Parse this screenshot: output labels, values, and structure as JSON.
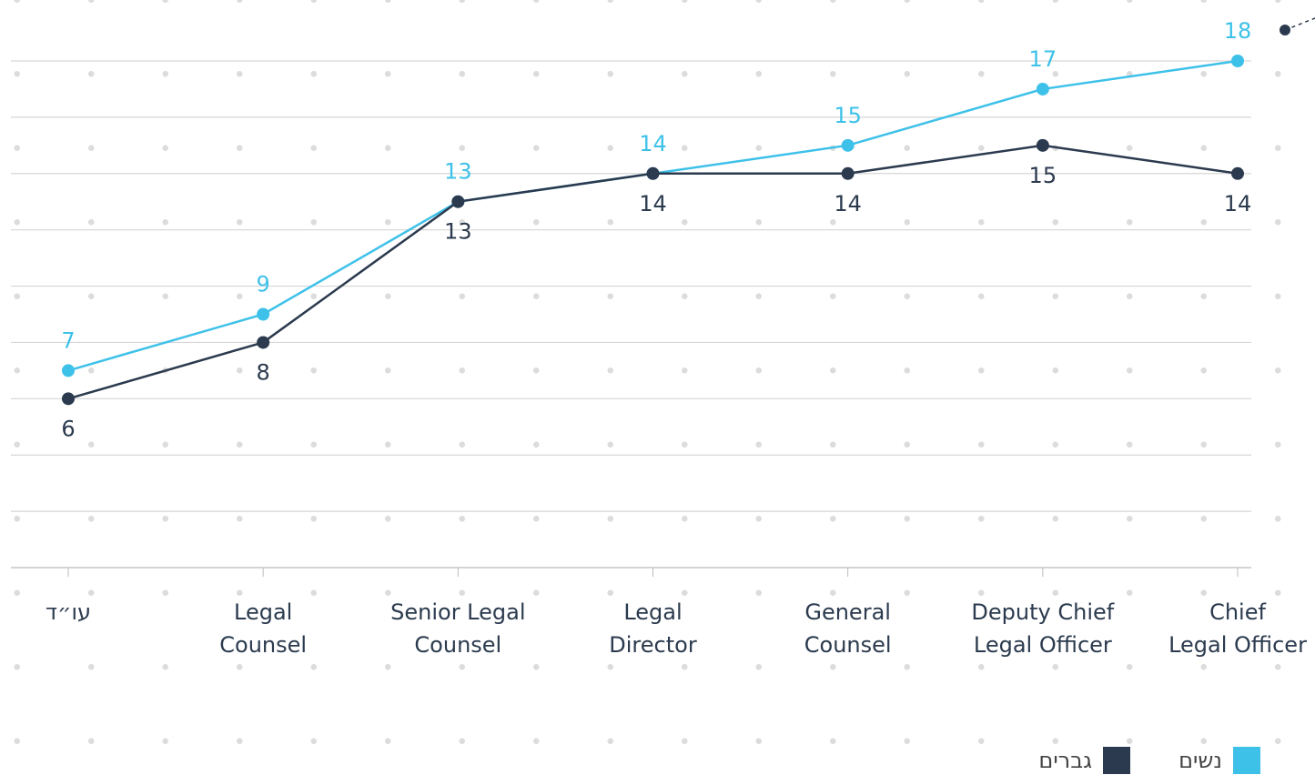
{
  "chart_data": {
    "type": "line",
    "categories": [
      [
        "עו״ד"
      ],
      [
        "Legal",
        "Counsel"
      ],
      [
        "Senior Legal",
        "Counsel"
      ],
      [
        "Legal",
        "Director"
      ],
      [
        "General",
        "Counsel"
      ],
      [
        "Deputy Chief",
        "Legal  Officer"
      ],
      [
        "Chief",
        "Legal  Officer"
      ]
    ],
    "series": [
      {
        "name": "נשים",
        "color": "#3ec1e9",
        "values": [
          7,
          9,
          13,
          14,
          15,
          17,
          18
        ]
      },
      {
        "name": "גברים",
        "color": "#2b3a4e",
        "values": [
          6,
          8,
          13,
          14,
          14,
          15,
          14
        ]
      }
    ],
    "ylim": [
      0,
      18
    ],
    "yticks": [
      0,
      2,
      4,
      6,
      8,
      10,
      12,
      14,
      16,
      18
    ],
    "grid": true,
    "legend": "bottom-right"
  }
}
